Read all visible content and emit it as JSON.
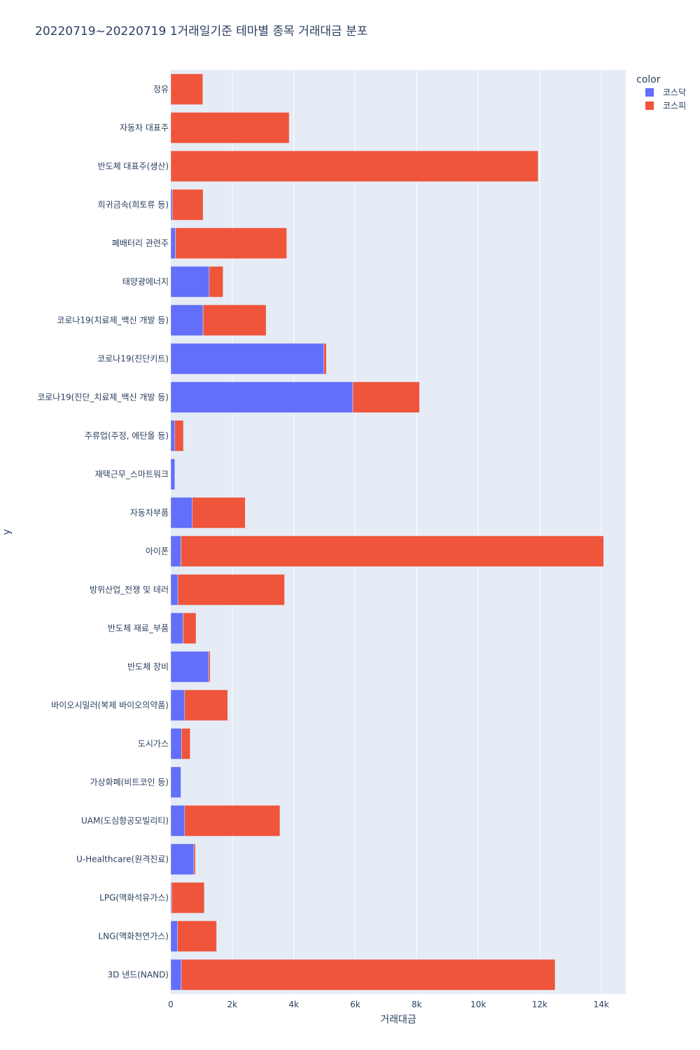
{
  "chart_data": {
    "type": "bar",
    "orientation": "horizontal",
    "barmode": "stack",
    "title": "20220719~20220719 1거래일기준 테마별 종목 거래대금 분포",
    "xlabel": "거래대금",
    "ylabel": "y",
    "xlim": [
      0,
      14800
    ],
    "xticks": [
      0,
      2000,
      4000,
      6000,
      8000,
      10000,
      12000,
      14000
    ],
    "xtick_labels": [
      "0",
      "2k",
      "4k",
      "6k",
      "8k",
      "10k",
      "12k",
      "14k"
    ],
    "legend_title": "color",
    "legend_position": "top-right",
    "grid": true,
    "categories": [
      "정유",
      "자동차 대표주",
      "반도체 대표주(생산)",
      "희귀금속(희토류 등)",
      "폐배터리 관련주",
      "태양광에너지",
      "코로나19(치료제_백신 개발 등)",
      "코로나19(진단키트)",
      "코로나19(진단_치료제_백신 개발 등)",
      "주류업(주정, 에탄올 등)",
      "재택근무_스마트워크",
      "자동차부품",
      "아이폰",
      "방위산업_전쟁 및 테러",
      "반도체 재료_부품",
      "반도체 장비",
      "바이오시밀러(복제 바이오의약품)",
      "도시가스",
      "가상화폐(비트코인 등)",
      "UAM(도심항공모빌리티)",
      "U-Healthcare(원격진료)",
      "LPG(액화석유가스)",
      "LNG(액화천연가스)",
      "3D 낸드(NAND)"
    ],
    "series": [
      {
        "name": "코스닥",
        "color": "#636efa",
        "values": [
          0,
          0,
          0,
          50,
          150,
          1250,
          1050,
          4980,
          5920,
          130,
          130,
          700,
          330,
          230,
          400,
          1230,
          450,
          350,
          330,
          450,
          750,
          30,
          220,
          340
        ]
      },
      {
        "name": "코스피",
        "color": "#ef553b",
        "values": [
          1040,
          3850,
          11950,
          1000,
          3620,
          450,
          2050,
          80,
          2170,
          280,
          0,
          1720,
          13750,
          3470,
          420,
          50,
          1400,
          280,
          0,
          3100,
          50,
          1060,
          1270,
          12160
        ]
      }
    ]
  }
}
